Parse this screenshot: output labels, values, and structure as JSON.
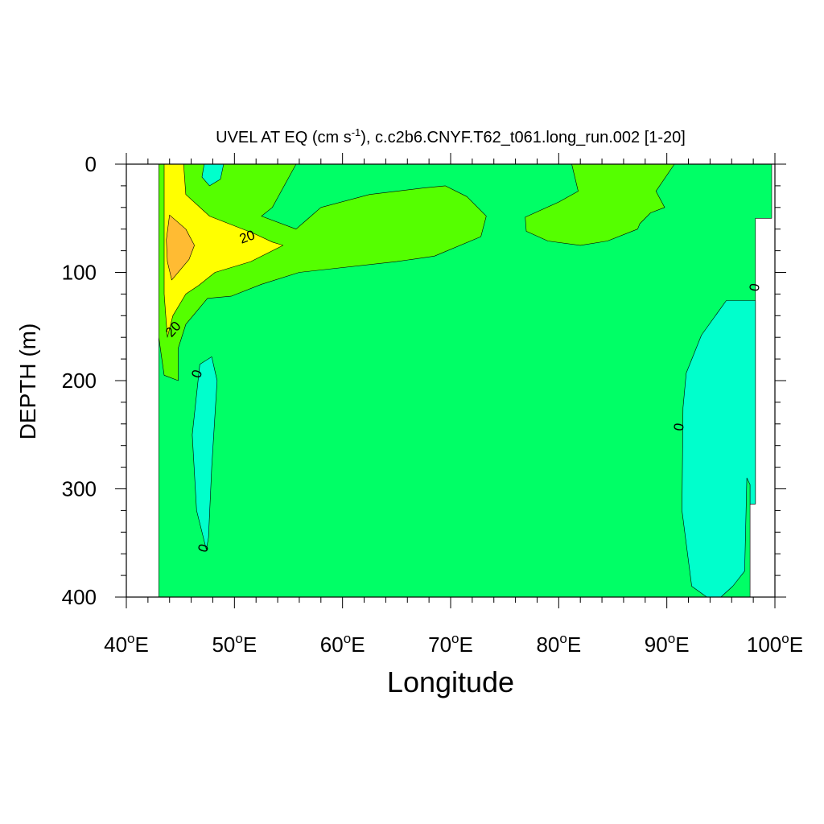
{
  "chart_data": {
    "type": "contour",
    "title": {
      "main": "UVEL AT EQ (cm s",
      "superscript": "-1",
      "rest": "), c.c2b6.CNYF.T62_t061.long_run.002 [1-20]"
    },
    "xlabel": "Longitude",
    "ylabel": "DEPTH (m)",
    "xlim": [
      40,
      100
    ],
    "ylim": [
      400,
      0
    ],
    "xticks": [
      {
        "value": 40,
        "num": "40",
        "sup": "o",
        "suf": "E"
      },
      {
        "value": 50,
        "num": "50",
        "sup": "o",
        "suf": "E"
      },
      {
        "value": 60,
        "num": "60",
        "sup": "o",
        "suf": "E"
      },
      {
        "value": 70,
        "num": "70",
        "sup": "o",
        "suf": "E"
      },
      {
        "value": 80,
        "num": "80",
        "sup": "o",
        "suf": "E"
      },
      {
        "value": 90,
        "num": "90",
        "sup": "o",
        "suf": "E"
      },
      {
        "value": 100,
        "num": "100",
        "sup": "o",
        "suf": "E"
      }
    ],
    "yticks": [
      {
        "value": 0,
        "label": "0"
      },
      {
        "value": 100,
        "label": "100"
      },
      {
        "value": 200,
        "label": "200"
      },
      {
        "value": 300,
        "label": "300"
      },
      {
        "value": 400,
        "label": "400"
      }
    ],
    "levels": {
      "below_0": "#00ffcc",
      "0_to_10": "#00ff66",
      "10_to_20": "#55ff00",
      "20_to_30": "#ffff00",
      "30_to_40": "#ffbb33"
    },
    "regions": [
      {
        "name": "land-gap-west",
        "fill": "#ffffff",
        "points": [
          [
            40,
            0
          ],
          [
            43,
            0
          ],
          [
            43,
            400
          ],
          [
            40,
            400
          ]
        ]
      },
      {
        "name": "domain-base",
        "fill": "#00ff66",
        "points": [
          [
            43,
            0
          ],
          [
            99.7,
            0
          ],
          [
            99.7,
            50
          ],
          [
            98.2,
            50
          ],
          [
            98.2,
            314
          ],
          [
            97.7,
            314
          ],
          [
            97.7,
            400
          ],
          [
            43,
            400
          ]
        ]
      },
      {
        "name": "band-10-20-west",
        "fill": "#55ff00",
        "points": [
          [
            43,
            0
          ],
          [
            55.7,
            0
          ],
          [
            53.5,
            40
          ],
          [
            52.5,
            48
          ],
          [
            55.7,
            60
          ],
          [
            58,
            40
          ],
          [
            62.5,
            28
          ],
          [
            67.5,
            22
          ],
          [
            69.5,
            20
          ],
          [
            71.5,
            30
          ],
          [
            73.3,
            48
          ],
          [
            72.8,
            67
          ],
          [
            68.5,
            85
          ],
          [
            65,
            90
          ],
          [
            56,
            100
          ],
          [
            52.5,
            111
          ],
          [
            49.7,
            122
          ],
          [
            47.5,
            124
          ],
          [
            45.5,
            148
          ],
          [
            44.8,
            170
          ],
          [
            44.8,
            200
          ],
          [
            43.5,
            195
          ],
          [
            43,
            160
          ]
        ]
      },
      {
        "name": "band-10-20-east",
        "fill": "#55ff00",
        "points": [
          [
            81.2,
            0
          ],
          [
            90.7,
            0
          ],
          [
            89,
            25
          ],
          [
            89.8,
            40
          ],
          [
            88.5,
            45
          ],
          [
            87.5,
            55
          ],
          [
            87.3,
            60
          ],
          [
            84.5,
            71
          ],
          [
            82,
            75
          ],
          [
            79,
            71
          ],
          [
            77,
            62
          ],
          [
            76.9,
            49
          ],
          [
            80,
            35
          ],
          [
            81.8,
            25
          ]
        ]
      },
      {
        "name": "band-20-30",
        "fill": "#ffff00",
        "points": [
          [
            43.5,
            0
          ],
          [
            45.3,
            0
          ],
          [
            45.5,
            28
          ],
          [
            47.7,
            48
          ],
          [
            51.8,
            64
          ],
          [
            53.5,
            72
          ],
          [
            54.5,
            75
          ],
          [
            51.5,
            90
          ],
          [
            48.2,
            100
          ],
          [
            46.7,
            112
          ],
          [
            45.5,
            120
          ],
          [
            44.3,
            140
          ],
          [
            43.8,
            160
          ],
          [
            43.5,
            120
          ]
        ]
      },
      {
        "name": "core-30-40",
        "fill": "#ffbb33",
        "points": [
          [
            44,
            47
          ],
          [
            45.5,
            60
          ],
          [
            46.3,
            75
          ],
          [
            45.8,
            88
          ],
          [
            44.2,
            107
          ],
          [
            43.8,
            90
          ],
          [
            43.7,
            70
          ]
        ]
      },
      {
        "name": "westward-surface-west",
        "fill": "#00ffcc",
        "points": [
          [
            47.2,
            0
          ],
          [
            49,
            0
          ],
          [
            48.7,
            14
          ],
          [
            47.7,
            20
          ],
          [
            47,
            12
          ]
        ]
      },
      {
        "name": "westward-sub-west",
        "fill": "#00ffcc",
        "points": [
          [
            46.8,
            185
          ],
          [
            47.9,
            178
          ],
          [
            48.4,
            200
          ],
          [
            47.9,
            280
          ],
          [
            47.6,
            345
          ],
          [
            47.4,
            356
          ],
          [
            46.5,
            320
          ],
          [
            46.1,
            250
          ]
        ]
      },
      {
        "name": "westward-east",
        "fill": "#00ffcc",
        "points": [
          [
            93.2,
            158
          ],
          [
            95.5,
            126
          ],
          [
            98.2,
            126
          ],
          [
            98.2,
            314
          ],
          [
            97.7,
            314
          ],
          [
            97.7,
            296
          ],
          [
            97.4,
            290
          ],
          [
            97.2,
            376
          ],
          [
            96.1,
            390
          ],
          [
            95,
            400
          ],
          [
            93.7,
            400
          ],
          [
            92.3,
            390
          ],
          [
            91.4,
            320
          ],
          [
            91.5,
            225
          ],
          [
            91.8,
            193
          ]
        ]
      }
    ],
    "contour_labels": [
      {
        "text": "20",
        "lon": 51.2,
        "depth": 68,
        "rotate": -20
      },
      {
        "text": "20",
        "lon": 44.4,
        "depth": 153,
        "rotate": -48
      },
      {
        "text": "0",
        "lon": 46.6,
        "depth": 194,
        "rotate": -72
      },
      {
        "text": "0",
        "lon": 47.2,
        "depth": 355,
        "rotate": -72
      },
      {
        "text": "0",
        "lon": 91.2,
        "depth": 243,
        "rotate": -80
      },
      {
        "text": "0",
        "lon": 98.2,
        "depth": 114,
        "rotate": -80
      }
    ]
  }
}
